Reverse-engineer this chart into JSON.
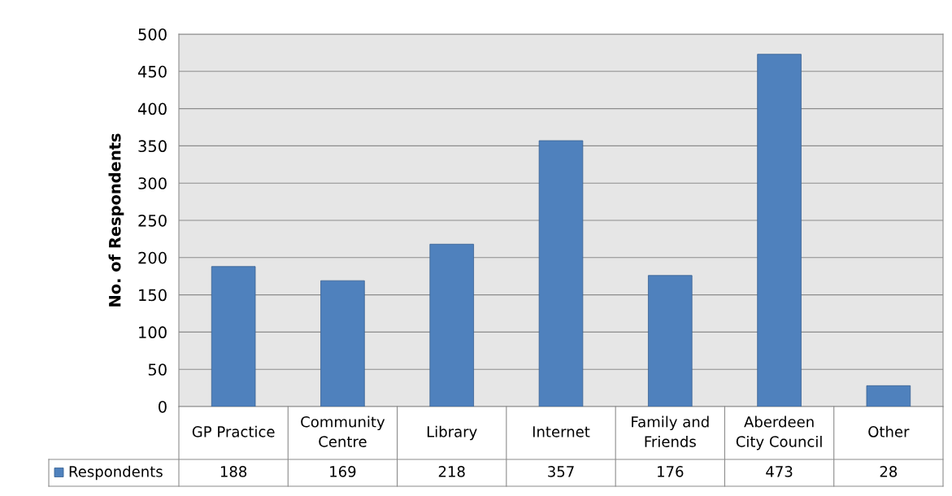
{
  "chart_data": {
    "type": "bar",
    "ylabel": "No. of Respondents",
    "categories": [
      "GP Practice",
      "Community Centre",
      "Library",
      "Internet",
      "Family and Friends",
      "Aberdeen City Council",
      "Other"
    ],
    "series": [
      {
        "name": "Respondents",
        "color": "#4f81bd",
        "values": [
          188,
          169,
          218,
          357,
          176,
          473,
          28
        ]
      }
    ],
    "ylim": [
      0,
      500
    ],
    "yticks": [
      0,
      50,
      100,
      150,
      200,
      250,
      300,
      350,
      400,
      450,
      500
    ],
    "grid": "y",
    "data_labels": true,
    "legend": "bottom left"
  }
}
